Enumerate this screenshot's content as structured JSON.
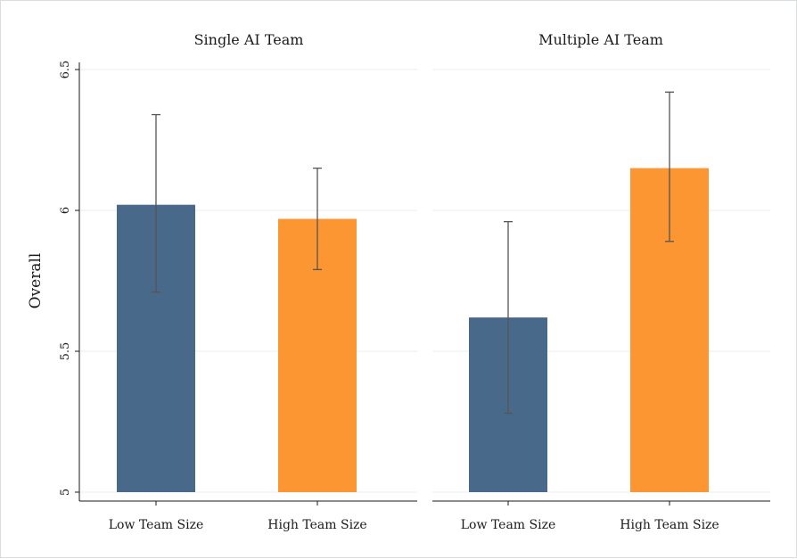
{
  "chart_data": {
    "type": "bar",
    "ylabel": "Overall",
    "ylim": [
      5,
      6.5
    ],
    "yticks": [
      "5",
      "5.5",
      "6",
      "6.5"
    ],
    "categories": [
      "Low Team Size",
      "High Team Size"
    ],
    "colors": {
      "Low Team Size": "#48698a",
      "High Team Size": "#fb9632"
    },
    "error_bar_color": "#555555",
    "grid": true,
    "panels": [
      {
        "title": "Single AI Team",
        "values": [
          6.02,
          5.97
        ],
        "error_low": [
          5.71,
          5.79
        ],
        "error_high": [
          6.34,
          6.15
        ]
      },
      {
        "title": "Multiple AI Team",
        "values": [
          5.62,
          6.15
        ],
        "error_low": [
          5.28,
          5.89
        ],
        "error_high": [
          5.96,
          6.42
        ]
      }
    ]
  }
}
